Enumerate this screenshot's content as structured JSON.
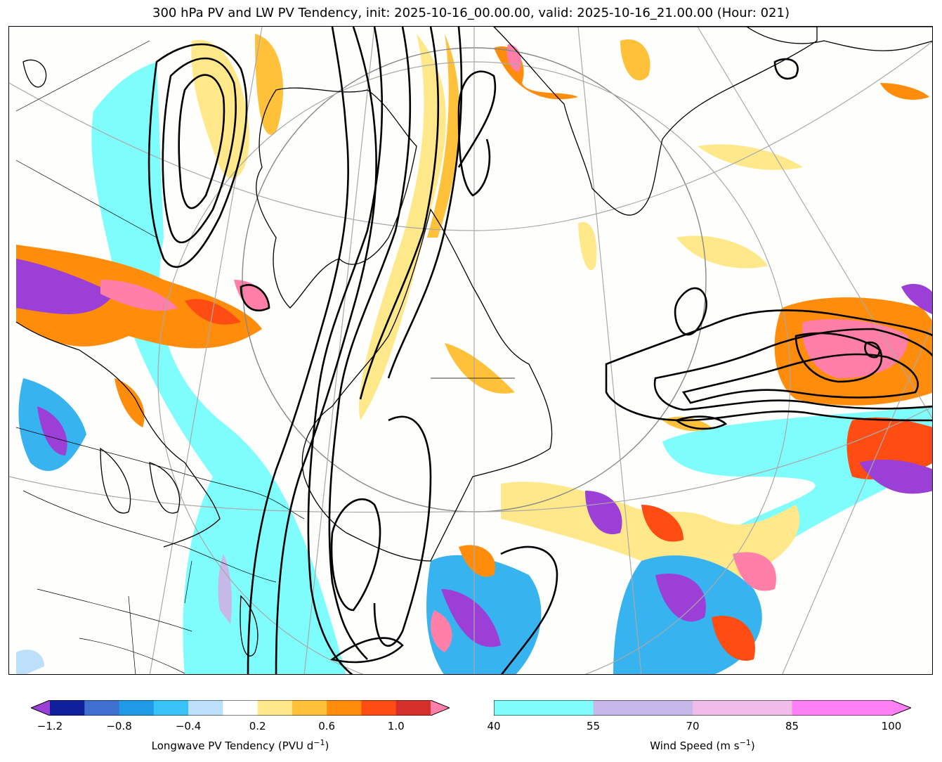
{
  "title": "300 hPa PV and LW PV Tendency, init: 2025-10-16_00.00.00, valid: 2025-10-16_21.00.00 (Hour: 021)",
  "map": {
    "field_colors": {
      "cyan": "#7ffdfd",
      "purple": "#9b3fd6",
      "navy": "#10209a",
      "blue": "#3f6fd0",
      "skyblue": "#37b3f0",
      "lightblue": "#bde0fa",
      "yellow": "#ffe88a",
      "gold": "#ffc03a",
      "orange": "#ff8c0a",
      "redorange": "#ff4c12",
      "red": "#d3302b",
      "pink": "#ff7fa8",
      "contour": "#000000",
      "grid": "#a9a9a9"
    }
  },
  "colorbar_left": {
    "label_text": "Longwave PV Tendency (PVU d",
    "label_sup": "−1",
    "label_close": ")",
    "ticks": [
      "−1.2",
      "−0.8",
      "−0.4",
      "0.2",
      "0.6",
      "1.0"
    ],
    "colors": [
      "#9b3fd6",
      "#10209a",
      "#3f6fd0",
      "#1e9ae6",
      "#37c3f5",
      "#bde0fa",
      "#ffffff",
      "#ffe88a",
      "#ffc03a",
      "#ff8c0a",
      "#ff4c12",
      "#d3302b",
      "#ff7fa8"
    ]
  },
  "colorbar_right": {
    "label_text": "Wind Speed (m s",
    "label_sup": "−1",
    "label_close": ")",
    "ticks": [
      "40",
      "55",
      "70",
      "85",
      "100"
    ],
    "colors": [
      "#7ffdfd",
      "#c6b8e8",
      "#f0bde8",
      "#ff7ff5"
    ]
  }
}
